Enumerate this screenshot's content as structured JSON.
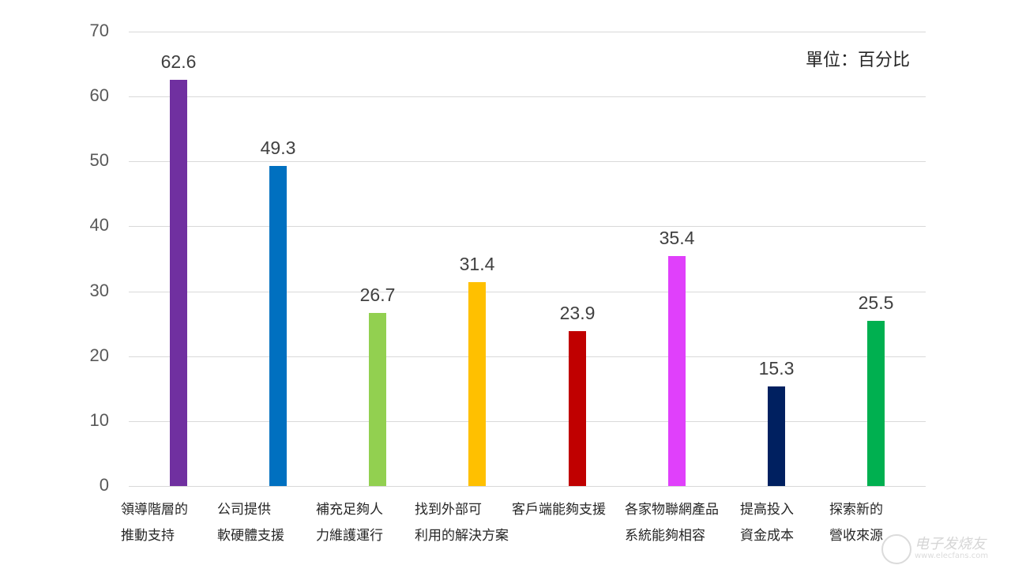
{
  "chart_data": {
    "type": "bar",
    "title": "",
    "xlabel": "",
    "ylabel": "",
    "unit_note": "單位：百分比",
    "ylim": [
      0,
      70
    ],
    "yticks": [
      0,
      10,
      20,
      30,
      40,
      50,
      60,
      70
    ],
    "grid": true,
    "legend": null,
    "categories": [
      "領導階層的\n推動支持",
      "公司提供\n軟硬體支援",
      "補充足夠人\n力維護運行",
      "找到外部可\n利用的解決方案",
      "客戶端能夠支援",
      "各家物聯網產品\n系統能夠相容",
      "提高投入\n資金成本",
      "探索新的\n營收來源"
    ],
    "values": [
      62.6,
      49.3,
      26.7,
      31.4,
      23.9,
      35.4,
      15.3,
      25.5
    ],
    "colors": [
      "#7030a0",
      "#0070c0",
      "#92d050",
      "#ffc000",
      "#c00000",
      "#e040fb",
      "#002060",
      "#00b050"
    ],
    "data_labels": [
      "62.6",
      "49.3",
      "26.7",
      "31.4",
      "23.9",
      "35.4",
      "15.3",
      "25.5"
    ]
  },
  "yaxis": {
    "ticks": [
      "0",
      "10",
      "20",
      "30",
      "40",
      "50",
      "60",
      "70"
    ]
  },
  "xaxis": {
    "labels": [
      "領導階層的\n推動支持",
      "公司提供\n軟硬體支援",
      "補充足夠人\n力維護運行",
      "找到外部可\n利用的解決方案",
      "客戶端能夠支援",
      "各家物聯網產品\n系統能夠相容",
      "提高投入\n資金成本",
      "探索新的\n營收來源"
    ]
  },
  "unit_label": "單位：百分比",
  "watermark": {
    "text": "电子发烧友",
    "url": "www.elecfans.com"
  }
}
